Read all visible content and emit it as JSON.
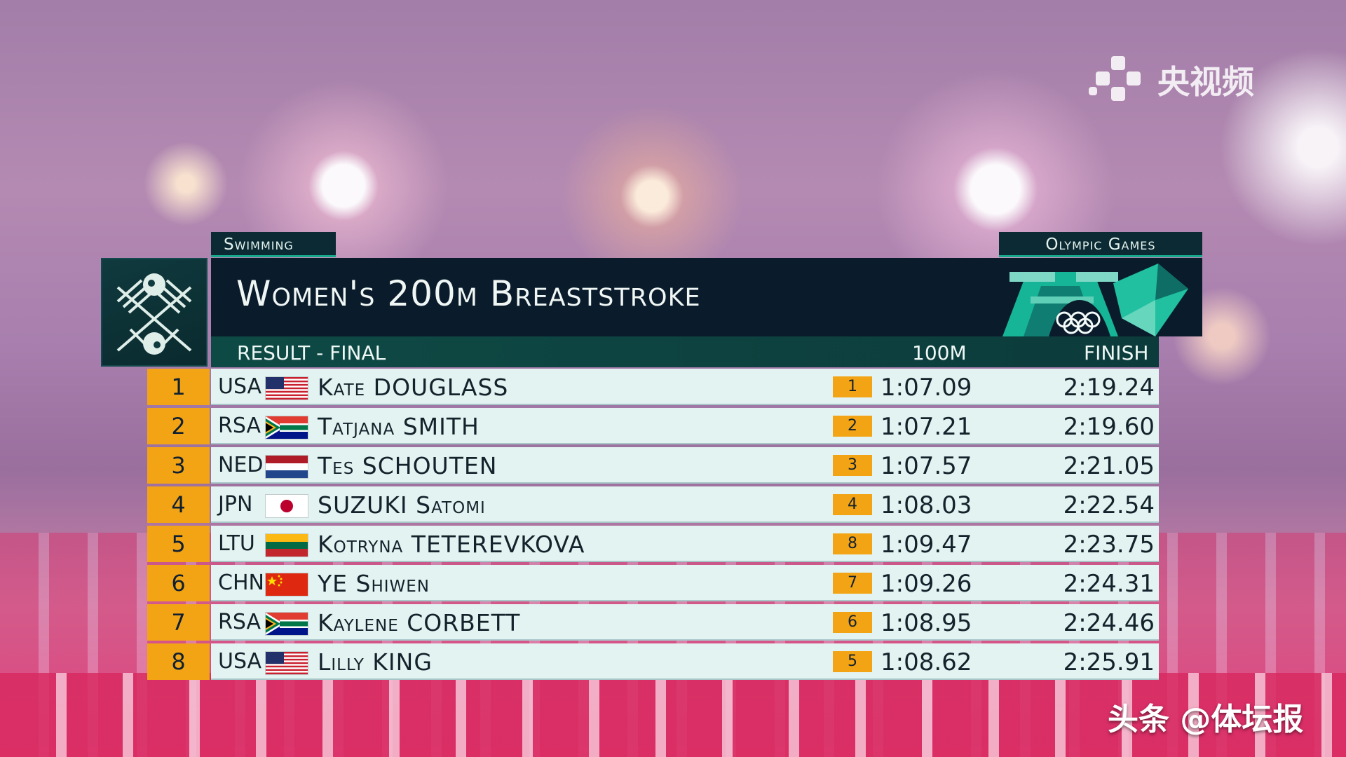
{
  "watermark_top": "央视频",
  "watermark_bottom": "头条 @体坛报",
  "sport": "Swimming",
  "games": "Olympic Games",
  "event_title": "Women's 200m Breaststroke",
  "phase": "RESULT - FINAL",
  "col_split": "100M",
  "col_finish": "FINISH",
  "results": [
    {
      "rank": "1",
      "noc": "USA",
      "name": "Kate DOUGLASS",
      "split_rank": "1",
      "split": "1:07.09",
      "finish": "2:19.24",
      "flag": "usa"
    },
    {
      "rank": "2",
      "noc": "RSA",
      "name": "Tatjana SMITH",
      "split_rank": "2",
      "split": "1:07.21",
      "finish": "2:19.60",
      "flag": "rsa"
    },
    {
      "rank": "3",
      "noc": "NED",
      "name": "Tes SCHOUTEN",
      "split_rank": "3",
      "split": "1:07.57",
      "finish": "2:21.05",
      "flag": "ned"
    },
    {
      "rank": "4",
      "noc": "JPN",
      "name": "SUZUKI Satomi",
      "split_rank": "4",
      "split": "1:08.03",
      "finish": "2:22.54",
      "flag": "jpn"
    },
    {
      "rank": "5",
      "noc": "LTU",
      "name": "Kotryna TETEREVKOVA",
      "split_rank": "8",
      "split": "1:09.47",
      "finish": "2:23.75",
      "flag": "ltu"
    },
    {
      "rank": "6",
      "noc": "CHN",
      "name": "YE Shiwen",
      "split_rank": "7",
      "split": "1:09.26",
      "finish": "2:24.31",
      "flag": "chn"
    },
    {
      "rank": "7",
      "noc": "RSA",
      "name": "Kaylene CORBETT",
      "split_rank": "6",
      "split": "1:08.95",
      "finish": "2:24.46",
      "flag": "rsa"
    },
    {
      "rank": "8",
      "noc": "USA",
      "name": "Lilly KING",
      "split_rank": "5",
      "split": "1:08.62",
      "finish": "2:25.91",
      "flag": "usa"
    }
  ],
  "colors": {
    "header": "#0a1c2c",
    "accent": "#16a98c",
    "rank_bg": "#f3a415",
    "row_bg": "#e3f3f1"
  }
}
